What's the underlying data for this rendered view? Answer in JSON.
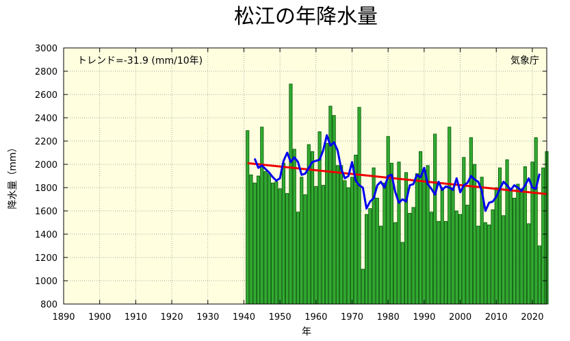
{
  "chart_data": {
    "type": "bar",
    "title": "松江の年降水量",
    "xlabel": "年",
    "ylabel": "降水量（mm）",
    "trend_label": "トレンド=-31.9 (mm/10年)",
    "source": "気象庁",
    "xlim": [
      1890,
      2024
    ],
    "ylim": [
      800,
      3000
    ],
    "x_ticks": [
      1890,
      1900,
      1910,
      1920,
      1930,
      1940,
      1950,
      1960,
      1970,
      1980,
      1990,
      2000,
      2010,
      2020
    ],
    "y_ticks": [
      800,
      1000,
      1200,
      1400,
      1600,
      1800,
      2000,
      2200,
      2400,
      2600,
      2800,
      3000
    ],
    "grid": true,
    "colors": {
      "background": "#ffffe0",
      "bar_fill": "#33aa33",
      "bar_edge": "#005500",
      "moving_average": "#0000ee",
      "trend": "#ee0000"
    },
    "series": [
      {
        "kind": "bar",
        "x": [
          1941,
          1942,
          1943,
          1944,
          1945,
          1946,
          1947,
          1948,
          1949,
          1950,
          1951,
          1952,
          1953,
          1954,
          1955,
          1956,
          1957,
          1958,
          1959,
          1960,
          1961,
          1962,
          1963,
          1964,
          1965,
          1966,
          1967,
          1968,
          1969,
          1970,
          1971,
          1972,
          1973,
          1974,
          1975,
          1976,
          1977,
          1978,
          1979,
          1980,
          1981,
          1982,
          1983,
          1984,
          1985,
          1986,
          1987,
          1988,
          1989,
          1990,
          1991,
          1992,
          1993,
          1994,
          1995,
          1996,
          1997,
          1998,
          1999,
          2000,
          2001,
          2002,
          2003,
          2004,
          2005,
          2006,
          2007,
          2008,
          2009,
          2010,
          2011,
          2012,
          2013,
          2014,
          2015,
          2016,
          2017,
          2018,
          2019,
          2020,
          2021,
          2022,
          2023,
          2024
        ],
        "values": [
          2290,
          1910,
          1840,
          1900,
          2320,
          1940,
          1920,
          1840,
          1850,
          1790,
          2010,
          1750,
          2690,
          2130,
          1590,
          1890,
          1740,
          2170,
          2110,
          1810,
          2280,
          1820,
          2180,
          2500,
          2420,
          1990,
          1990,
          1860,
          1800,
          1890,
          2080,
          2490,
          1100,
          1570,
          1620,
          1970,
          1710,
          1470,
          1840,
          2240,
          2010,
          1500,
          2020,
          1330,
          1930,
          1580,
          1630,
          1920,
          2110,
          1950,
          1990,
          1590,
          2260,
          1510,
          1800,
          1510,
          2320,
          1800,
          1600,
          1570,
          2060,
          1650,
          2230,
          2000,
          1470,
          1890,
          1500,
          1480,
          1610,
          1800,
          1970,
          1560,
          2040,
          1780,
          1710,
          1830,
          1790,
          1980,
          1490,
          2020,
          2230,
          1300,
          1970,
          2110
        ]
      },
      {
        "kind": "line",
        "name": "moving_average",
        "x": [
          1943,
          1944,
          1945,
          1946,
          1947,
          1948,
          1949,
          1950,
          1951,
          1952,
          1953,
          1954,
          1955,
          1956,
          1957,
          1958,
          1959,
          1960,
          1961,
          1962,
          1963,
          1964,
          1965,
          1966,
          1967,
          1968,
          1969,
          1970,
          1971,
          1972,
          1973,
          1974,
          1975,
          1976,
          1977,
          1978,
          1979,
          1980,
          1981,
          1982,
          1983,
          1984,
          1985,
          1986,
          1987,
          1988,
          1989,
          1990,
          1991,
          1992,
          1993,
          1994,
          1995,
          1996,
          1997,
          1998,
          1999,
          2000,
          2001,
          2002,
          2003,
          2004,
          2005,
          2006,
          2007,
          2008,
          2009,
          2010,
          2011,
          2012,
          2013,
          2014,
          2015,
          2016,
          2017,
          2018,
          2019,
          2020,
          2021,
          2022
        ],
        "values": [
          2050,
          1970,
          1990,
          1960,
          1930,
          1890,
          1860,
          1880,
          2030,
          2100,
          2020,
          2060,
          2020,
          1910,
          1920,
          1970,
          2020,
          2030,
          2040,
          2120,
          2250,
          2160,
          2190,
          2120,
          1960,
          1880,
          1900,
          2020,
          1860,
          1820,
          1800,
          1620,
          1680,
          1710,
          1820,
          1850,
          1800,
          1900,
          1910,
          1760,
          1670,
          1700,
          1680,
          1820,
          1830,
          1910,
          1890,
          1970,
          1830,
          1790,
          1740,
          1850,
          1780,
          1810,
          1800,
          1780,
          1880,
          1760,
          1820,
          1840,
          1900,
          1870,
          1850,
          1770,
          1600,
          1670,
          1680,
          1720,
          1790,
          1850,
          1820,
          1780,
          1820,
          1800,
          1770,
          1820,
          1880,
          1800,
          1790,
          1920
        ]
      },
      {
        "kind": "line",
        "name": "trend",
        "x": [
          1941,
          2024
        ],
        "values": [
          2010,
          1745
        ]
      }
    ]
  }
}
